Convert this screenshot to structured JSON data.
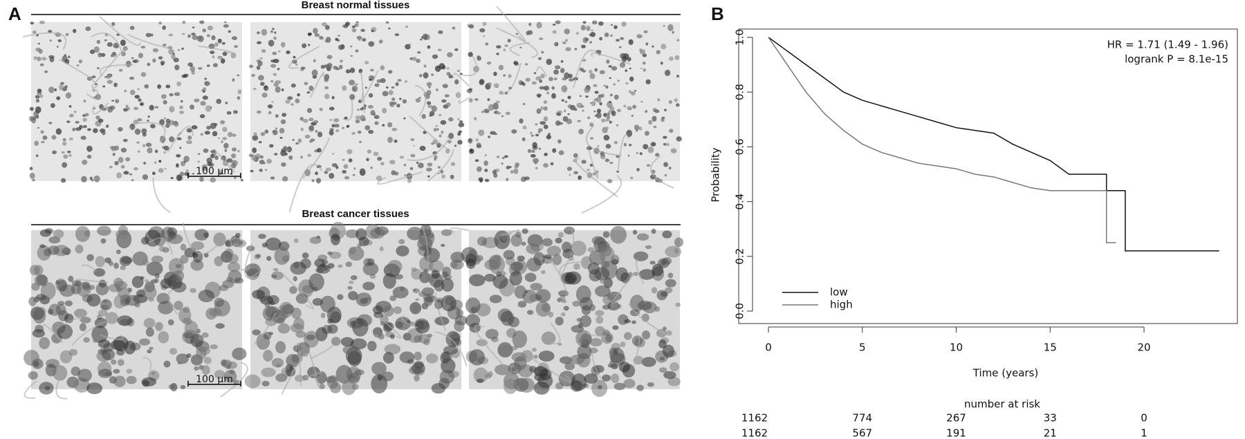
{
  "panel_a": {
    "label": "A",
    "sections": [
      {
        "title": "Breast normal tissues",
        "scale_bar": "100 μm"
      },
      {
        "title": "Breast cancer tissues",
        "scale_bar": "100 μm"
      }
    ]
  },
  "panel_b_label": "B",
  "chart_data": {
    "type": "line",
    "x_label": "Time (years)",
    "y_label": "Probability",
    "annotations": [
      "HR = 1.71 (1.49 - 1.96)",
      "logrank P = 8.1e-15"
    ],
    "xlim": [
      0,
      24
    ],
    "xticks": [
      0,
      5,
      10,
      15,
      20
    ],
    "ylim": [
      0,
      1
    ],
    "yticks": [
      {
        "value": 0,
        "label": "0.0"
      },
      {
        "value": 0.2,
        "label": "0.2"
      },
      {
        "value": 0.4,
        "label": "0.4"
      },
      {
        "value": 0.6,
        "label": "0.6"
      },
      {
        "value": 0.8,
        "label": "0.8"
      },
      {
        "value": 1,
        "label": "1.0"
      }
    ],
    "legend": "bottom-left",
    "series": [
      {
        "name": "low",
        "color": "#111111",
        "x": [
          0,
          1,
          2,
          3,
          4,
          5,
          6,
          7,
          8,
          9,
          10,
          11,
          12,
          13,
          14,
          15,
          16,
          18,
          18,
          19,
          19,
          24
        ],
        "values": [
          1.0,
          0.95,
          0.9,
          0.85,
          0.8,
          0.77,
          0.75,
          0.73,
          0.71,
          0.69,
          0.67,
          0.66,
          0.65,
          0.61,
          0.58,
          0.55,
          0.5,
          0.5,
          0.44,
          0.44,
          0.22,
          0.22
        ]
      },
      {
        "name": "high",
        "color": "#777777",
        "x": [
          0,
          1,
          2,
          3,
          4,
          5,
          6,
          7,
          8,
          9,
          10,
          11,
          12,
          13,
          14,
          15,
          18,
          18,
          18.5
        ],
        "values": [
          1.0,
          0.9,
          0.8,
          0.72,
          0.66,
          0.61,
          0.58,
          0.56,
          0.54,
          0.53,
          0.52,
          0.5,
          0.49,
          0.47,
          0.45,
          0.44,
          0.44,
          0.25,
          0.25
        ]
      }
    ]
  },
  "risk_table": {
    "title": "number at risk",
    "rows": [
      [
        1162,
        774,
        267,
        33,
        0
      ],
      [
        1162,
        567,
        191,
        21,
        1
      ]
    ]
  }
}
